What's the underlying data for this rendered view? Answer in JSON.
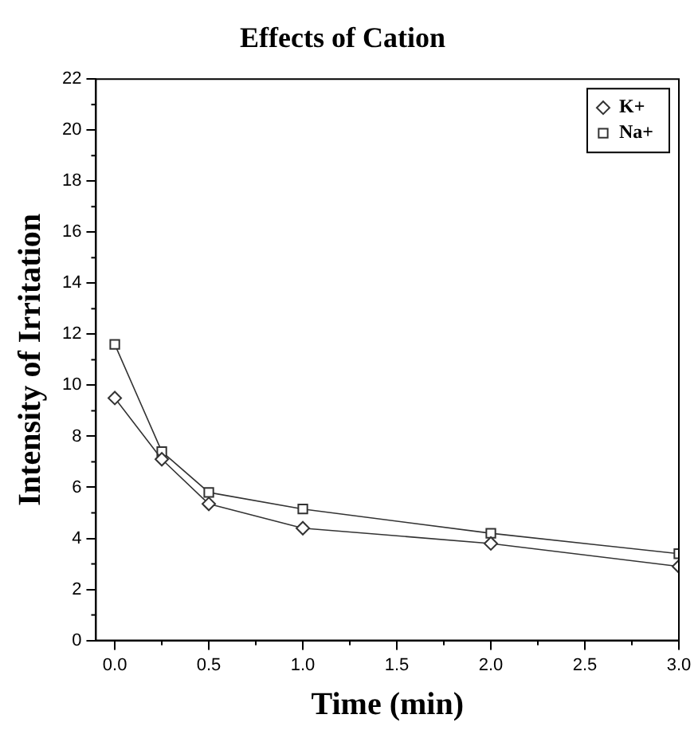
{
  "chart_data": {
    "type": "line",
    "title": "Effects of Cation",
    "xlabel": "Time (min)",
    "ylabel": "Intensity of Irritation",
    "x": [
      0,
      0.25,
      0.5,
      1,
      2,
      3
    ],
    "series": [
      {
        "name": "K+",
        "color": "#333333",
        "marker": "diamond",
        "values": [
          9.5,
          7.1,
          5.35,
          4.4,
          3.8,
          2.9
        ]
      },
      {
        "name": "Na+",
        "color": "#333333",
        "marker": "square",
        "values": [
          11.6,
          7.4,
          5.8,
          5.15,
          4.2,
          3.4
        ]
      }
    ],
    "xlim": [
      -0.1,
      3.0
    ],
    "xticks": [
      {
        "value": 0,
        "label": "0.0"
      },
      0.5,
      {
        "value": 1,
        "label": "1.0"
      },
      1.5,
      {
        "value": 2,
        "label": "2.0"
      },
      2.5,
      {
        "value": 3,
        "label": "3.0"
      }
    ],
    "ylim": [
      0,
      22
    ],
    "yticks": [
      0,
      2,
      4,
      6,
      8,
      10,
      12,
      14,
      16,
      18,
      20,
      22
    ],
    "grid": false,
    "legend": "top right",
    "line_style": "solid"
  }
}
